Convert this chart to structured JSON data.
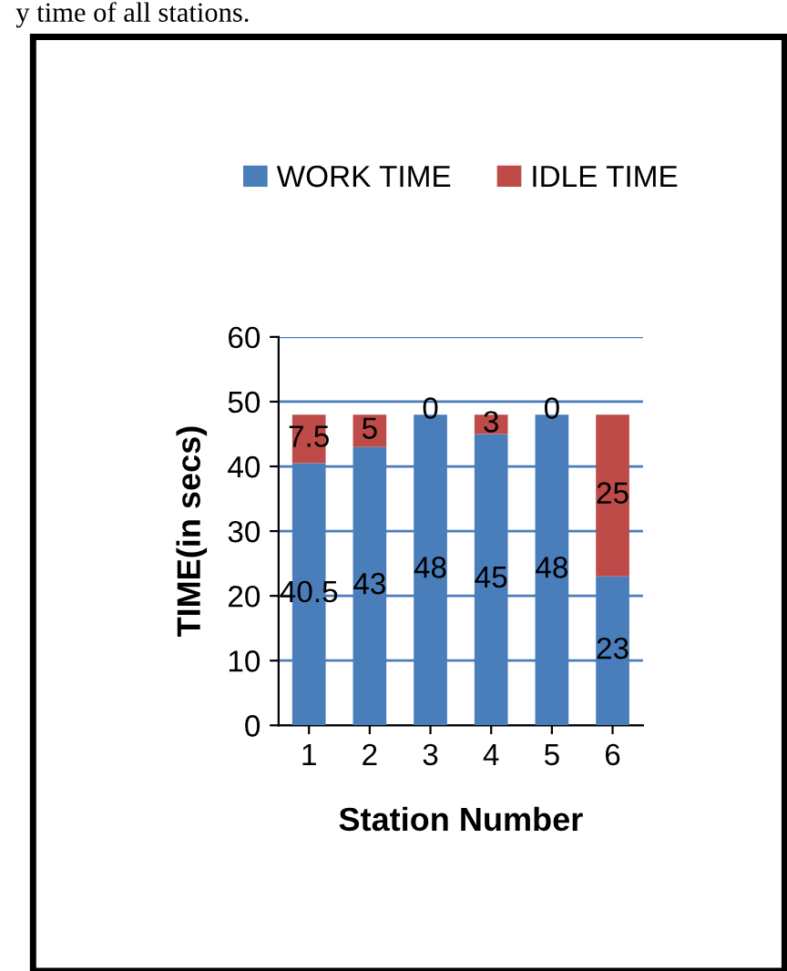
{
  "chart_data": {
    "type": "bar",
    "stacked": true,
    "categories": [
      "1",
      "2",
      "3",
      "4",
      "5",
      "6"
    ],
    "series": [
      {
        "name": "WORK TIME",
        "color": "#4a7ebb",
        "values": [
          40.5,
          43,
          48,
          45,
          48,
          23
        ]
      },
      {
        "name": "IDLE TIME",
        "color": "#be4b48",
        "values": [
          7.5,
          5,
          0,
          3,
          0,
          25
        ]
      }
    ],
    "ylim": [
      0,
      60
    ],
    "yticks": [
      0,
      10,
      20,
      30,
      40,
      50,
      60
    ],
    "ylabel": "TIME(in secs)",
    "xlabel": "Station Number",
    "grid": "y",
    "legend": "top",
    "data_labels": true,
    "annotations": [
      "y time of all stations."
    ]
  }
}
